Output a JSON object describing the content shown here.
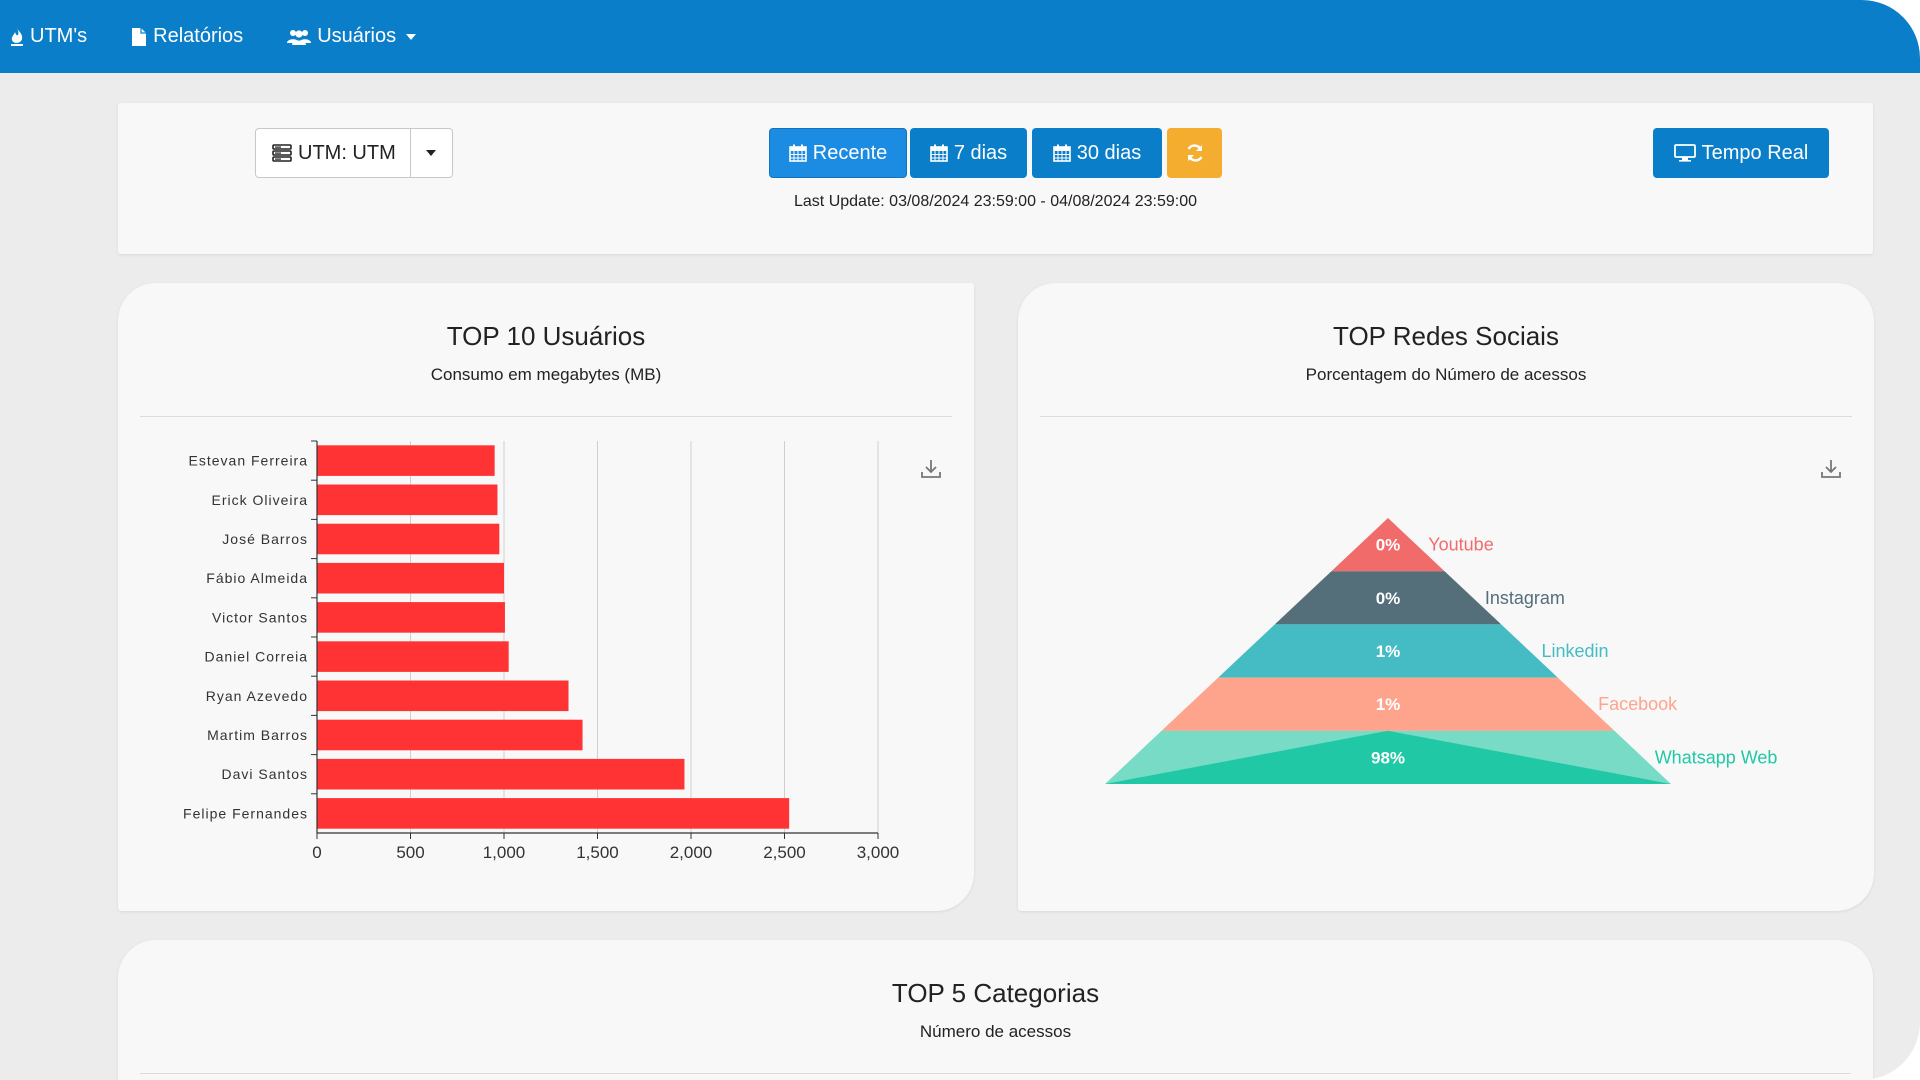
{
  "topbar": {
    "items": [
      {
        "label": "UTM's",
        "icon": "fire-icon"
      },
      {
        "label": "Relatórios",
        "icon": "file-icon"
      },
      {
        "label": "Usuários",
        "icon": "users-icon"
      }
    ]
  },
  "toolbar": {
    "utm_label": "UTM: UTM",
    "recente": "Recente",
    "dias7": "7 dias",
    "dias30": "30 dias",
    "tempo_real": "Tempo Real",
    "last_update": "Last Update: 03/08/2024 23:59:00 - 04/08/2024 23:59:00",
    "colors": {
      "primary": "#0b7ec9",
      "active": "#1c8ce2",
      "refresh": "#f4ad2f"
    }
  },
  "cards": {
    "top_users": {
      "title": "TOP 10 Usuários",
      "subtitle": "Consumo em megabytes (MB)"
    },
    "top_social": {
      "title": "TOP Redes Sociais",
      "subtitle": "Porcentagem do Número de acessos"
    },
    "top_categories": {
      "title": "TOP 5 Categorias",
      "subtitle": "Número de acessos"
    }
  },
  "chart_data": [
    {
      "type": "bar",
      "orientation": "horizontal",
      "categories": [
        "Estevan Ferreira",
        "Erick Oliveira",
        "José Barros",
        "Fábio Almeida",
        "Victor Santos",
        "Daniel Correia",
        "Ryan Azevedo",
        "Martim Barros",
        "Davi Santos",
        "Felipe Fernandes"
      ],
      "values": [
        950,
        965,
        975,
        1000,
        1005,
        1025,
        1345,
        1420,
        1965,
        2525
      ],
      "xlim": [
        0,
        3000
      ],
      "xticks": [
        "0",
        "500",
        "1,000",
        "1,500",
        "2,000",
        "2,500",
        "3,000"
      ],
      "grid": true,
      "color": "#ff3333"
    },
    {
      "type": "funnel",
      "orientation": "pyramid",
      "categories": [
        "Youtube",
        "Instagram",
        "Linkedin",
        "Facebook",
        "Whatsapp Web"
      ],
      "values": [
        0,
        0,
        1,
        1,
        98
      ],
      "labels": [
        "0%",
        "0%",
        "1%",
        "1%",
        "98%"
      ],
      "colors": [
        "#f26b6b",
        "#546e7a",
        "#45bcc3",
        "#ffa48c",
        "#21c8a5"
      ]
    }
  ]
}
